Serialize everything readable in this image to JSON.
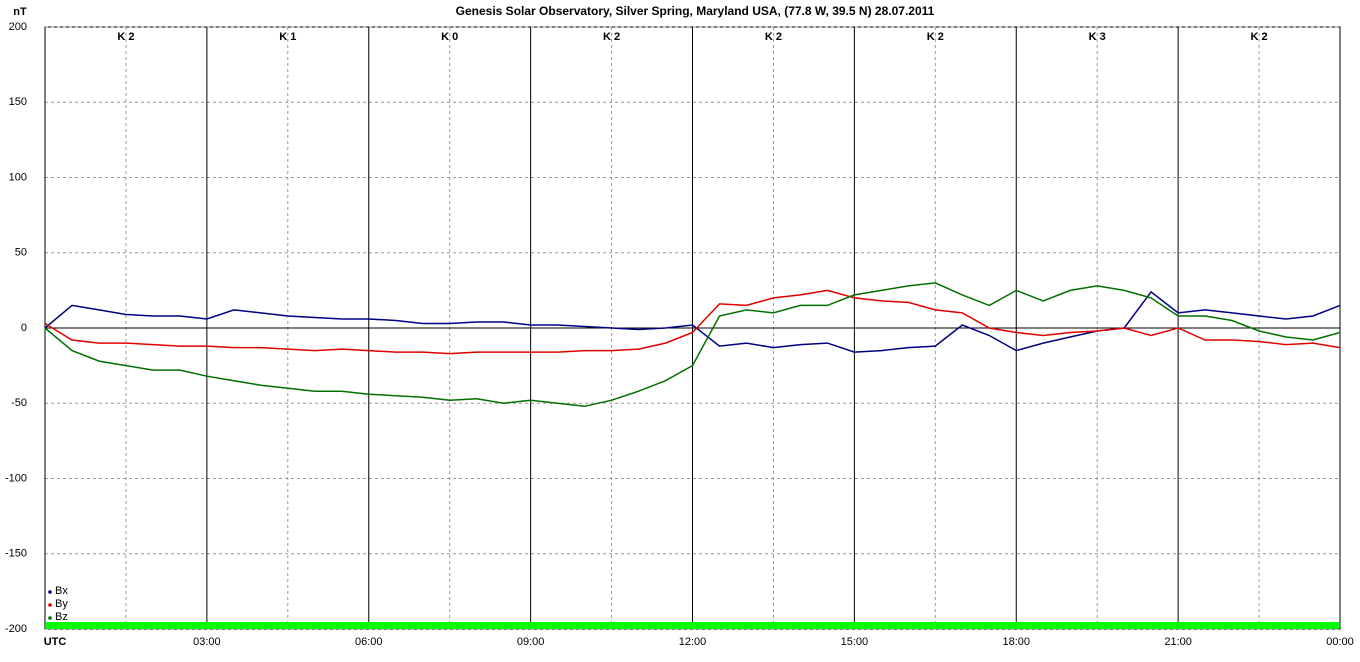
{
  "chart_data": {
    "type": "line",
    "title": "Genesis Solar Observatory, Silver Spring, Maryland USA, (77.8 W, 39.5 N)  28.07.2011",
    "y_label": "nT",
    "k_index_labels": [
      "K 2",
      "K 1",
      "K 0",
      "K 2",
      "K 2",
      "K 2",
      "K 3",
      "K 2"
    ],
    "x": [
      0,
      0.5,
      1,
      1.5,
      2,
      2.5,
      3,
      3.5,
      4,
      4.5,
      5,
      5.5,
      6,
      6.5,
      7,
      7.5,
      8,
      8.5,
      9,
      9.5,
      10,
      10.5,
      11,
      11.5,
      12,
      12.5,
      13,
      13.5,
      14,
      14.5,
      15,
      15.5,
      16,
      16.5,
      17,
      17.5,
      18,
      18.5,
      19,
      19.5,
      20,
      20.5,
      21,
      21.5,
      22,
      22.5,
      23,
      23.5,
      24
    ],
    "series": [
      {
        "name": "Bx",
        "color": "#000080",
        "values": [
          0,
          15,
          12,
          9,
          8,
          8,
          6,
          12,
          10,
          8,
          7,
          6,
          6,
          5,
          3,
          3,
          4,
          4,
          2,
          2,
          1,
          0,
          -1,
          0,
          2,
          -12,
          -10,
          -13,
          -11,
          -10,
          -16,
          -15,
          -13,
          -12,
          2,
          -5,
          -15,
          -10,
          -6,
          -2,
          0,
          24,
          10,
          12,
          10,
          8,
          6,
          8,
          15
        ]
      },
      {
        "name": "By",
        "color": "#e00000",
        "values": [
          3,
          -8,
          -10,
          -10,
          -11,
          -12,
          -12,
          -13,
          -13,
          -14,
          -15,
          -14,
          -15,
          -16,
          -16,
          -17,
          -16,
          -16,
          -16,
          -16,
          -15,
          -15,
          -14,
          -10,
          -3,
          16,
          15,
          20,
          22,
          25,
          20,
          18,
          17,
          12,
          10,
          0,
          -3,
          -5,
          -3,
          -2,
          0,
          -5,
          0,
          -8,
          -8,
          -9,
          -11,
          -10,
          -13
        ]
      },
      {
        "name": "Bz",
        "color": "#007000",
        "values": [
          0,
          -15,
          -22,
          -25,
          -28,
          -28,
          -32,
          -35,
          -38,
          -40,
          -42,
          -42,
          -44,
          -45,
          -46,
          -48,
          -47,
          -50,
          -48,
          -50,
          -52,
          -48,
          -42,
          -35,
          -25,
          8,
          12,
          10,
          15,
          15,
          22,
          25,
          28,
          30,
          22,
          15,
          25,
          18,
          25,
          28,
          25,
          20,
          8,
          8,
          5,
          -2,
          -6,
          -8,
          -3
        ]
      }
    ],
    "xlim": [
      0,
      24
    ],
    "xticks": [
      {
        "value": 0,
        "label": "UTC"
      },
      {
        "value": 3,
        "label": "03:00"
      },
      {
        "value": 6,
        "label": "06:00"
      },
      {
        "value": 9,
        "label": "09:00"
      },
      {
        "value": 12,
        "label": "12:00"
      },
      {
        "value": 15,
        "label": "15:00"
      },
      {
        "value": 18,
        "label": "18:00"
      },
      {
        "value": 21,
        "label": "21:00"
      },
      {
        "value": 24,
        "label": "00:00"
      }
    ],
    "ylim": [
      -200,
      200
    ],
    "yticks": [
      200,
      150,
      100,
      50,
      0,
      -50,
      -100,
      -150,
      -200
    ],
    "grid": true,
    "legend": "lower left"
  }
}
